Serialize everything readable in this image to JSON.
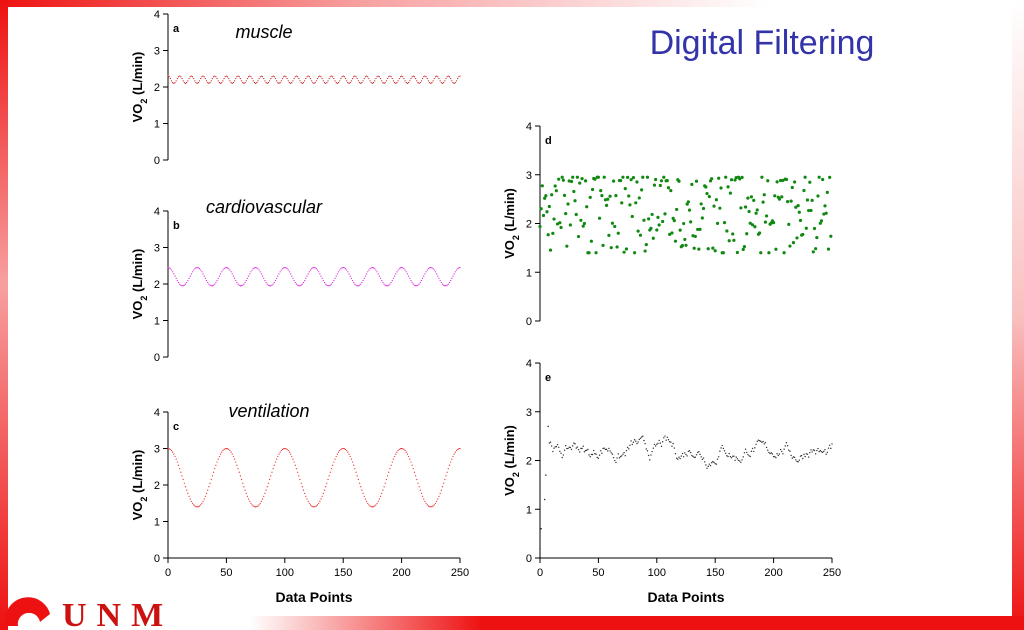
{
  "slide_title": "Digital Filtering",
  "logo_text": "UNM",
  "colors": {
    "accent_red": "#ee1111",
    "title_blue": "#3333aa"
  },
  "chart_data": [
    {
      "type": "line",
      "panel": "a",
      "subtitle": "muscle",
      "ylabel_main": "VO",
      "ylabel_sub": "2",
      "ylabel_unit": " (L/min)",
      "xlabel": "",
      "xlim": [
        0,
        250
      ],
      "ylim": [
        0,
        4
      ],
      "yticks": [
        "0",
        "1",
        "2",
        "3",
        "4"
      ],
      "xticks": [],
      "color": "#cc2222",
      "series": [
        {
          "mean": 2.2,
          "amplitude": 0.1,
          "period": 10
        }
      ]
    },
    {
      "type": "line",
      "panel": "b",
      "subtitle": "cardiovascular",
      "ylabel_main": "VO",
      "ylabel_sub": "2",
      "ylabel_unit": " (L/min)",
      "xlabel": "",
      "xlim": [
        0,
        250
      ],
      "ylim": [
        0,
        4
      ],
      "yticks": [
        "0",
        "1",
        "2",
        "3",
        "4"
      ],
      "xticks": [],
      "color": "#dd22dd",
      "series": [
        {
          "mean": 2.2,
          "amplitude": 0.25,
          "period": 25
        }
      ]
    },
    {
      "type": "line",
      "panel": "c",
      "subtitle": "ventilation",
      "ylabel_main": "VO",
      "ylabel_sub": "2",
      "ylabel_unit": " (L/min)",
      "xlabel": "Data Points",
      "xlim": [
        0,
        250
      ],
      "ylim": [
        0,
        4
      ],
      "yticks": [
        "0",
        "1",
        "2",
        "3",
        "4"
      ],
      "xticks": [
        "0",
        "50",
        "100",
        "150",
        "200",
        "250"
      ],
      "color": "#ee2222",
      "series": [
        {
          "mean": 2.2,
          "amplitude": 0.8,
          "period": 50
        }
      ]
    },
    {
      "type": "scatter",
      "panel": "d",
      "subtitle": "",
      "ylabel_main": "VO",
      "ylabel_sub": "2",
      "ylabel_unit": " (L/min)",
      "xlabel": "",
      "xlim": [
        0,
        250
      ],
      "ylim": [
        0,
        4
      ],
      "yticks": [
        "0",
        "1",
        "2",
        "3",
        "4"
      ],
      "xticks": [],
      "color": "#118811",
      "series": [
        {
          "n": 250,
          "center": 2.2,
          "min": 1.4,
          "max": 2.95
        }
      ]
    },
    {
      "type": "line",
      "panel": "e",
      "subtitle": "",
      "ylabel_main": "VO",
      "ylabel_sub": "2",
      "ylabel_unit": " (L/min)",
      "xlabel": "Data Points",
      "xlim": [
        0,
        250
      ],
      "ylim": [
        0,
        4
      ],
      "yticks": [
        "0",
        "1",
        "2",
        "3",
        "4"
      ],
      "xticks": [
        "0",
        "50",
        "100",
        "150",
        "200",
        "250"
      ],
      "color": "#333333",
      "series": [
        {
          "start": [
            [
              0,
              0.2
            ],
            [
              1,
              0.6
            ],
            [
              4,
              1.2
            ],
            [
              5,
              1.7
            ],
            [
              7,
              2.7
            ]
          ],
          "mean": 2.2,
          "amplitude": 0.25
        }
      ]
    }
  ]
}
